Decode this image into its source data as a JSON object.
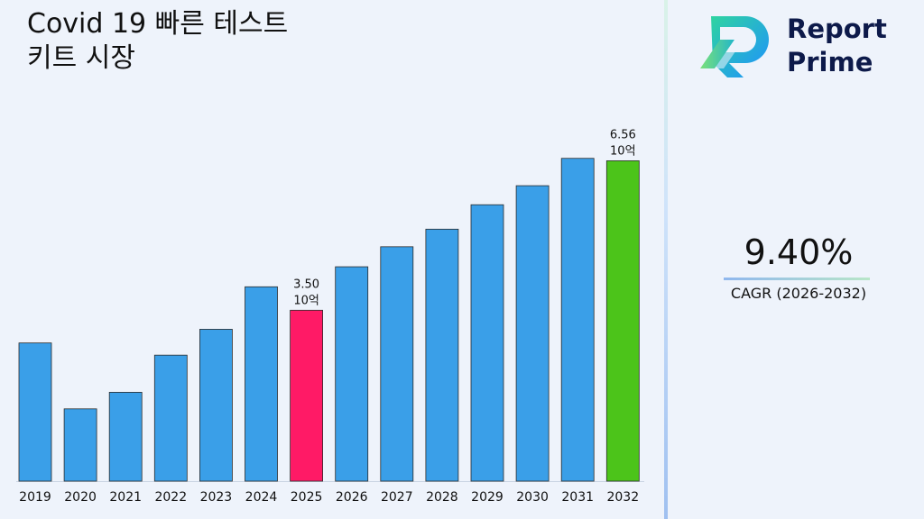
{
  "title_line1": "Covid 19 빠른 테스트",
  "title_line2": "키트 시장",
  "logo": {
    "line1": "Report",
    "line2": "Prime",
    "brand_colors": [
      "#1e90ff",
      "#22c55e",
      "#0d1a4a"
    ]
  },
  "cagr": {
    "value": "9.40%",
    "label": "CAGR (2026-2032)"
  },
  "chart_data": {
    "type": "bar",
    "title": "Covid 19 빠른 테스트 키트 시장",
    "unit": "10억",
    "categories": [
      "2019",
      "2020",
      "2021",
      "2022",
      "2023",
      "2024",
      "2025",
      "2026",
      "2027",
      "2028",
      "2029",
      "2030",
      "2031",
      "2032"
    ],
    "values": [
      2.83,
      1.48,
      1.82,
      2.58,
      3.11,
      3.98,
      3.5,
      4.39,
      4.8,
      5.16,
      5.66,
      6.05,
      6.61,
      6.56
    ],
    "colors": [
      "#3a9fe8",
      "#3a9fe8",
      "#3a9fe8",
      "#3a9fe8",
      "#3a9fe8",
      "#3a9fe8",
      "#ff1a66",
      "#3a9fe8",
      "#3a9fe8",
      "#3a9fe8",
      "#3a9fe8",
      "#3a9fe8",
      "#3a9fe8",
      "#4cc41a"
    ],
    "data_labels": [
      {
        "index": 6,
        "value": "3.50",
        "unit": "10억"
      },
      {
        "index": 13,
        "value": "6.56",
        "unit": "10억"
      }
    ],
    "grid": false,
    "legend": "none"
  }
}
